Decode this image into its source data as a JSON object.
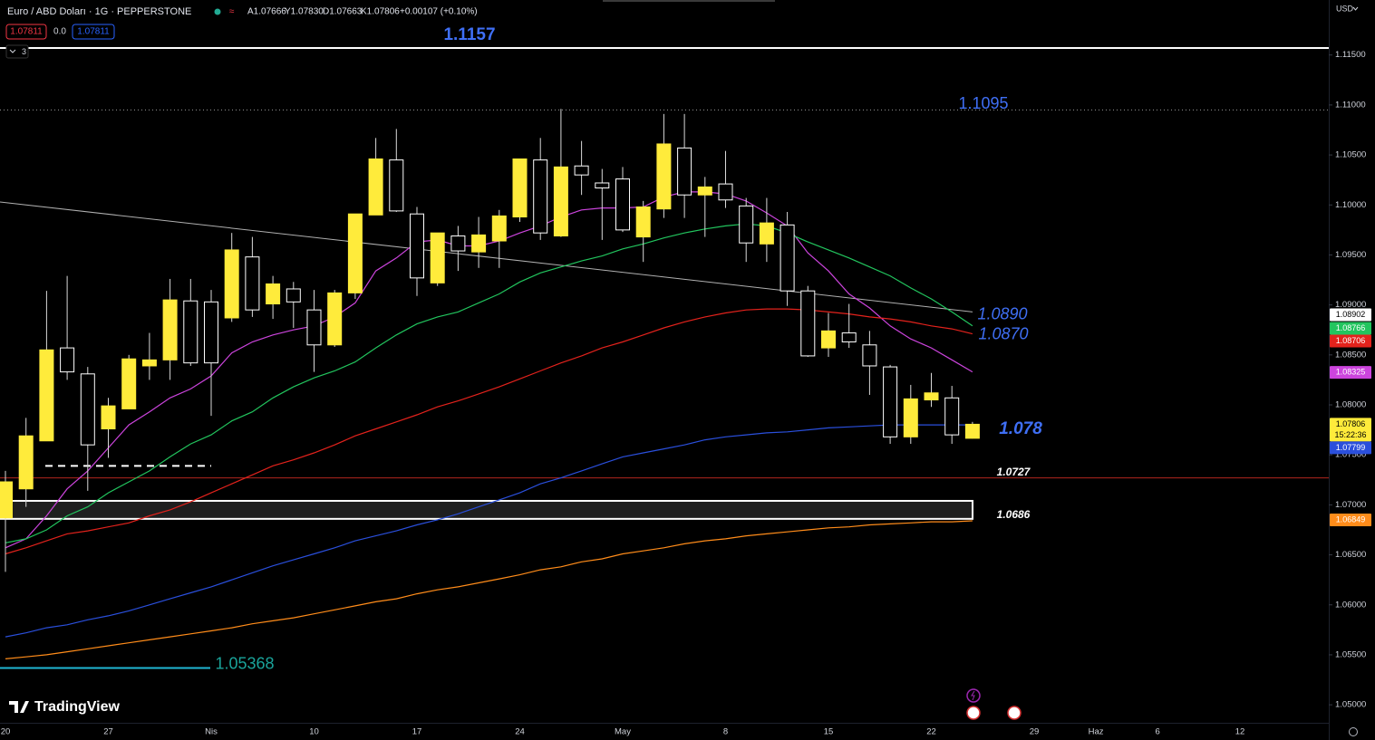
{
  "header": {
    "symbol": "Euro / ABD Doları · 1G · PEPPERSTONE",
    "ohlc": [
      "A1.07666",
      "Y1.07830",
      "D1.07663",
      "K1.07806",
      "+0.00107 (+0.10%)"
    ],
    "sell": "1.07811",
    "spread": "0.0",
    "buy": "1.07811",
    "indicators": "3",
    "currency": "USD",
    "brand": "TradingView"
  },
  "chart_data": {
    "type": "candlestick",
    "categories": [
      "20",
      null,
      null,
      null,
      null,
      "27",
      null,
      null,
      null,
      null,
      "Nis",
      null,
      null,
      null,
      null,
      "10",
      null,
      null,
      null,
      null,
      "17",
      null,
      null,
      null,
      null,
      "24",
      null,
      null,
      null,
      null,
      "May",
      null,
      null,
      null,
      null,
      "8",
      null,
      null,
      null,
      null,
      "15",
      null,
      null,
      null,
      null,
      "22",
      null,
      null,
      null,
      null,
      "29",
      null,
      null,
      "Haz",
      null,
      null,
      "6",
      null,
      null,
      null,
      "12",
      null,
      null,
      null
    ],
    "open": [
      1.0687,
      1.0716,
      1.0764,
      1.0857,
      1.0831,
      1.0776,
      1.0796,
      1.0839,
      1.0845,
      1.0904,
      1.0903,
      1.0887,
      1.0948,
      1.0901,
      1.0916,
      1.0895,
      1.086,
      1.0912,
      1.099,
      1.1045,
      1.0991,
      1.0922,
      1.0969,
      1.0953,
      1.0964,
      1.0988,
      1.1045,
      1.0969,
      1.1039,
      1.1022,
      1.1026,
      1.0968,
      1.0996,
      1.1057,
      1.101,
      1.1021,
      1.0999,
      1.0961,
      1.098,
      1.0914,
      1.0857,
      1.0872,
      1.086,
      1.0838,
      1.0768,
      1.0805,
      1.0807,
      1.07666,
      null,
      null,
      null,
      null,
      null,
      null,
      null,
      null,
      null,
      null,
      null,
      null,
      null,
      null,
      null,
      null
    ],
    "high": [
      1.0734,
      1.0787,
      1.0914,
      1.0929,
      1.0838,
      1.0807,
      1.085,
      1.0872,
      1.0926,
      1.0926,
      1.0915,
      1.0972,
      1.0968,
      1.0929,
      1.0923,
      1.0915,
      1.0915,
      1.0991,
      1.1067,
      1.1076,
      1.0998,
      1.0972,
      1.0979,
      1.0988,
      1.0995,
      1.1046,
      1.1067,
      1.1096,
      1.1064,
      1.1036,
      1.1038,
      1.1004,
      1.1091,
      1.1091,
      1.1028,
      1.1054,
      1.1007,
      1.1007,
      1.0993,
      1.0919,
      1.0892,
      1.0901,
      1.0874,
      1.084,
      1.082,
      1.0832,
      1.0819,
      1.0783,
      null,
      null,
      null,
      null,
      null,
      null,
      null,
      null,
      null,
      null,
      null,
      null,
      null,
      null,
      null,
      null
    ],
    "low": [
      1.0633,
      1.0698,
      1.0764,
      1.0825,
      1.0714,
      1.0747,
      1.0796,
      1.0825,
      1.0825,
      1.0839,
      1.0789,
      1.0883,
      1.0888,
      1.0886,
      1.0877,
      1.0833,
      1.0858,
      1.0906,
      1.099,
      1.0993,
      1.0909,
      1.0919,
      1.0934,
      1.0937,
      1.0937,
      1.0983,
      1.0965,
      1.0968,
      1.101,
      1.0965,
      1.0973,
      1.0943,
      1.0987,
      1.0987,
      1.0968,
      1.0997,
      1.0943,
      1.0943,
      1.0899,
      1.0848,
      1.0848,
      1.0857,
      1.081,
      1.0761,
      1.0761,
      1.0798,
      1.0761,
      1.07663,
      null,
      null,
      null,
      null,
      null,
      null,
      null,
      null,
      null,
      null,
      null,
      null,
      null,
      null,
      null,
      null
    ],
    "close": [
      1.0723,
      1.0769,
      1.0855,
      1.0833,
      1.076,
      1.0799,
      1.0846,
      1.0845,
      1.0905,
      1.0842,
      1.0842,
      1.0955,
      1.0895,
      1.0921,
      1.0903,
      1.086,
      1.0912,
      1.0991,
      1.1046,
      1.0994,
      1.0927,
      1.0972,
      1.0954,
      1.097,
      1.0989,
      1.1046,
      1.0972,
      1.1038,
      1.103,
      1.1017,
      1.0975,
      1.0998,
      1.1061,
      1.101,
      1.1018,
      1.1005,
      1.0962,
      1.0982,
      1.0914,
      1.0849,
      1.0874,
      1.0863,
      1.0839,
      1.0768,
      1.0806,
      1.0812,
      1.077,
      1.07806,
      null,
      null,
      null,
      null,
      null,
      null,
      null,
      null,
      null,
      null,
      null,
      null,
      null,
      null,
      null,
      null
    ],
    "up_color": "#ffeb3b",
    "down_color": "#000000",
    "down_border": "#ffffff",
    "wick_color": "#d9d9d9",
    "ylim": [
      1.0482,
      1.1205
    ],
    "yticks": [
      {
        "value": 1.115,
        "label": "1.11500"
      },
      {
        "value": 1.11,
        "label": "1.11000"
      },
      {
        "value": 1.105,
        "label": "1.10500"
      },
      {
        "value": 1.1,
        "label": "1.10000"
      },
      {
        "value": 1.095,
        "label": "1.09500"
      },
      {
        "value": 1.09,
        "label": "1.09000"
      },
      {
        "value": 1.085,
        "label": "1.08500"
      },
      {
        "value": 1.08,
        "label": "1.08000"
      },
      {
        "value": 1.075,
        "label": "1.07500"
      },
      {
        "value": 1.07,
        "label": "1.07000"
      },
      {
        "value": 1.065,
        "label": "1.06500"
      },
      {
        "value": 1.06,
        "label": "1.06000"
      },
      {
        "value": 1.055,
        "label": "1.05500"
      },
      {
        "value": 1.05,
        "label": "1.05000"
      }
    ],
    "lines": [
      {
        "color": "#cc44dd",
        "values": [
          1.0657,
          1.0666,
          1.0689,
          1.0716,
          1.0734,
          1.0757,
          1.078,
          1.0793,
          1.0807,
          1.0816,
          1.0829,
          1.0852,
          1.0863,
          1.087,
          1.0875,
          1.0879,
          1.0888,
          1.0902,
          1.0934,
          1.0947,
          1.0963,
          1.0965,
          1.0959,
          1.0959,
          1.0964,
          1.0972,
          1.0979,
          1.0988,
          1.0995,
          1.0997,
          1.0997,
          1.0998,
          1.1008,
          1.1013,
          1.1013,
          1.1011,
          1.1004,
          1.0992,
          1.0979,
          1.0952,
          1.0934,
          1.0911,
          1.0897,
          1.0879,
          1.0866,
          1.0857,
          1.0845,
          1.0833,
          null,
          null,
          null,
          null,
          null,
          null,
          null,
          null,
          null,
          null,
          null,
          null,
          null,
          null,
          null,
          null
        ]
      },
      {
        "color": "#22c55e",
        "values": [
          1.0662,
          1.0666,
          1.0675,
          1.0689,
          1.0698,
          1.0712,
          1.0723,
          1.0734,
          1.0748,
          1.0761,
          1.077,
          1.0784,
          1.0793,
          1.0807,
          1.0818,
          1.0827,
          1.0834,
          1.0843,
          1.0857,
          1.087,
          1.0881,
          1.0888,
          1.0893,
          1.0902,
          1.0911,
          1.0923,
          1.0932,
          1.0938,
          1.0944,
          1.0949,
          1.0956,
          1.0961,
          1.0967,
          1.0972,
          1.0976,
          1.0979,
          1.0981,
          1.0979,
          1.0972,
          1.0963,
          1.0955,
          1.0947,
          1.0938,
          1.0929,
          1.0917,
          1.0906,
          1.0893,
          1.0879,
          null,
          null,
          null,
          null,
          null,
          null,
          null,
          null,
          null,
          null,
          null,
          null,
          null,
          null,
          null,
          null
        ]
      },
      {
        "color": "#e3221c",
        "values": [
          1.0651,
          1.0657,
          1.0664,
          1.0671,
          1.0674,
          1.0678,
          1.0682,
          1.0689,
          1.0695,
          1.0703,
          1.0712,
          1.0721,
          1.073,
          1.0739,
          1.0745,
          1.0752,
          1.076,
          1.0769,
          1.0776,
          1.0783,
          1.079,
          1.0798,
          1.0804,
          1.0811,
          1.0818,
          1.0826,
          1.0834,
          1.0842,
          1.0849,
          1.0857,
          1.0863,
          1.087,
          1.0877,
          1.0883,
          1.0888,
          1.0892,
          1.0895,
          1.0896,
          1.0896,
          1.0895,
          1.0893,
          1.0891,
          1.0888,
          1.0886,
          1.0883,
          1.0879,
          1.0876,
          1.0871,
          null,
          null,
          null,
          null,
          null,
          null,
          null,
          null,
          null,
          null,
          null,
          null,
          null,
          null,
          null,
          null
        ]
      },
      {
        "color": "#2a4fdc",
        "values": [
          1.0568,
          1.0572,
          1.0577,
          1.058,
          1.0585,
          1.0589,
          1.0594,
          1.06,
          1.0606,
          1.0612,
          1.0618,
          1.0625,
          1.0632,
          1.0639,
          1.0645,
          1.0651,
          1.0657,
          1.0664,
          1.0669,
          1.0674,
          1.068,
          1.0685,
          1.0691,
          1.0698,
          1.0705,
          1.0712,
          1.0721,
          1.0727,
          1.0734,
          1.0741,
          1.0748,
          1.0752,
          1.0756,
          1.076,
          1.0765,
          1.0768,
          1.077,
          1.0772,
          1.0773,
          1.0775,
          1.0777,
          1.0778,
          1.0779,
          1.078,
          1.078,
          1.078,
          1.078,
          1.078,
          null,
          null,
          null,
          null,
          null,
          null,
          null,
          null,
          null,
          null,
          null,
          null,
          null,
          null,
          null,
          null
        ]
      },
      {
        "color": "#ff8c1a",
        "values": [
          1.0546,
          1.0548,
          1.055,
          1.0553,
          1.0556,
          1.0559,
          1.0562,
          1.0565,
          1.0568,
          1.0571,
          1.0574,
          1.0577,
          1.0581,
          1.0584,
          1.0587,
          1.0591,
          1.0595,
          1.0599,
          1.0603,
          1.0606,
          1.0611,
          1.0615,
          1.0618,
          1.0622,
          1.0626,
          1.063,
          1.0635,
          1.0638,
          1.0643,
          1.0646,
          1.0651,
          1.0654,
          1.0657,
          1.0661,
          1.0664,
          1.0666,
          1.0669,
          1.0671,
          1.0673,
          1.0675,
          1.0677,
          1.0678,
          1.068,
          1.0681,
          1.0682,
          1.0683,
          1.0683,
          1.0684,
          null,
          null,
          null,
          null,
          null,
          null,
          null,
          null,
          null,
          null,
          null,
          null,
          null,
          null,
          null,
          null
        ]
      }
    ],
    "trendline": {
      "color": "#b0b0b0",
      "values": [
        1.1003,
        1.0893
      ]
    },
    "dashed_level": 1.0739,
    "zone_top": 1.0704,
    "annotations": [
      {
        "value": 1.1157,
        "label": "1.1157"
      },
      {
        "value": 1.1095,
        "label": "1.1095"
      },
      {
        "value": 1.089,
        "label": "1.0890"
      },
      {
        "value": 1.087,
        "label": "1.0870"
      },
      {
        "value": 1.078,
        "label": "1.078"
      },
      {
        "value": 1.0727,
        "label": "1.0727"
      },
      {
        "value": 1.0686,
        "label": "1.0686"
      },
      {
        "value": 1.05368,
        "label": "1.05368"
      }
    ],
    "price_tags": [
      {
        "value": 1.08902,
        "label": "1.08902",
        "color": "#ffffff"
      },
      {
        "value": 1.08766,
        "label": "1.08766",
        "color": "#22c55e"
      },
      {
        "value": 1.08706,
        "label": "1.08706",
        "color": "#e3221c"
      },
      {
        "value": 1.08325,
        "label": "1.08325",
        "color": "#cc44dd"
      },
      {
        "value": 1.07806,
        "label": "1.07806",
        "color": "#ffeb3b",
        "countdown": "15:22:36"
      },
      {
        "value": 1.07799,
        "label": "1.07799",
        "color": "#2a4fdc"
      },
      {
        "value": 1.06849,
        "label": "1.06849",
        "color": "#ff8c1a"
      }
    ]
  }
}
